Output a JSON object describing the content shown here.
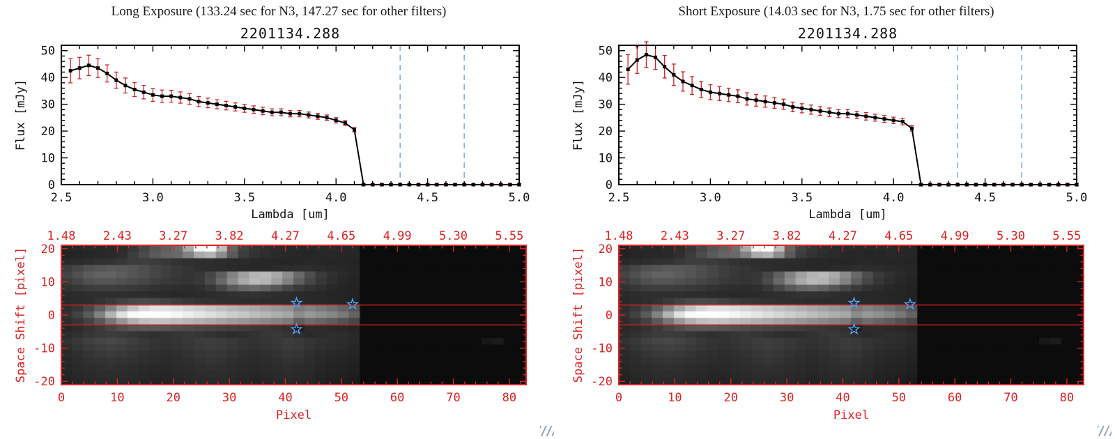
{
  "labels": {
    "flux_axis": "Flux [mJy]",
    "lambda_axis": "Lambda [um]",
    "space_axis": "Space Shift [pixel]",
    "pixel_axis": "Pixel"
  },
  "panels": [
    {
      "header": "Long Exposure (133.24 sec for N3, 147.27 sec for other filters)",
      "spectrum_title": "2201134.288"
    },
    {
      "header": "Short Exposure (14.03 sec for N3, 1.75 sec for other filters)",
      "spectrum_title": "2201134.288"
    }
  ],
  "colors": {
    "background": "#ffffff",
    "axis_black": "#000000",
    "axis_red": "#dd2222",
    "error_red": "#cc2222",
    "dashed_blue": "#7fb2e5",
    "star_blue": "#55a0f0"
  },
  "chart_data": [
    {
      "type": "line",
      "name": "long_exposure_spectrum",
      "title": "2201134.288",
      "xlabel": "Lambda [um]",
      "ylabel": "Flux [mJy]",
      "xlim": [
        2.5,
        5.0
      ],
      "ylim": [
        0,
        52
      ],
      "xticks": [
        2.5,
        3.0,
        3.5,
        4.0,
        4.5,
        5.0
      ],
      "yticks": [
        0,
        10,
        20,
        30,
        40,
        50
      ],
      "dashed_lines_x": [
        4.35,
        4.7
      ],
      "x": [
        2.55,
        2.6,
        2.65,
        2.7,
        2.75,
        2.8,
        2.85,
        2.9,
        2.95,
        3.0,
        3.05,
        3.1,
        3.15,
        3.2,
        3.25,
        3.3,
        3.35,
        3.4,
        3.45,
        3.5,
        3.55,
        3.6,
        3.65,
        3.7,
        3.75,
        3.8,
        3.85,
        3.9,
        3.95,
        4.0,
        4.05,
        4.1,
        4.15,
        4.2,
        4.25,
        4.3,
        4.35,
        4.4,
        4.45,
        4.5,
        4.55,
        4.6,
        4.65,
        4.7,
        4.75,
        4.8,
        4.85,
        4.9,
        4.95,
        5.0
      ],
      "y": [
        42.5,
        43.5,
        44.5,
        43.5,
        41.5,
        39.0,
        37.0,
        35.5,
        34.5,
        33.5,
        33.0,
        33.0,
        32.5,
        32.0,
        31.0,
        30.5,
        30.0,
        29.5,
        29.0,
        28.5,
        28.0,
        27.5,
        27.0,
        27.0,
        26.5,
        26.5,
        26.0,
        25.5,
        25.0,
        24.0,
        23.0,
        20.5,
        0,
        0,
        0,
        0,
        0,
        0,
        0,
        0,
        0,
        0,
        0,
        0,
        0,
        0,
        0,
        0,
        0,
        0
      ],
      "yerr": [
        4.5,
        4.0,
        3.8,
        3.5,
        3.2,
        3.0,
        2.8,
        2.6,
        2.5,
        2.4,
        2.3,
        2.2,
        2.1,
        2.0,
        1.9,
        1.8,
        1.7,
        1.6,
        1.5,
        1.5,
        1.4,
        1.4,
        1.3,
        1.3,
        1.2,
        1.2,
        1.1,
        1.1,
        1.0,
        1.0,
        0.9,
        0.8,
        0.4,
        0.4,
        0.4,
        0.4,
        0.4,
        0.4,
        0.4,
        0.4,
        0.4,
        0.4,
        0.4,
        0.4,
        0.4,
        0.4,
        0.4,
        0.4,
        0.4,
        0.4
      ]
    },
    {
      "type": "line",
      "name": "short_exposure_spectrum",
      "title": "2201134.288",
      "xlabel": "Lambda [um]",
      "ylabel": "Flux [mJy]",
      "xlim": [
        2.5,
        5.0
      ],
      "ylim": [
        0,
        52
      ],
      "xticks": [
        2.5,
        3.0,
        3.5,
        4.0,
        4.5,
        5.0
      ],
      "yticks": [
        0,
        10,
        20,
        30,
        40,
        50
      ],
      "dashed_lines_x": [
        4.35,
        4.7
      ],
      "x": [
        2.55,
        2.6,
        2.65,
        2.7,
        2.75,
        2.8,
        2.85,
        2.9,
        2.95,
        3.0,
        3.05,
        3.1,
        3.15,
        3.2,
        3.25,
        3.3,
        3.35,
        3.4,
        3.45,
        3.5,
        3.55,
        3.6,
        3.65,
        3.7,
        3.75,
        3.8,
        3.85,
        3.9,
        3.95,
        4.0,
        4.05,
        4.1,
        4.15,
        4.2,
        4.25,
        4.3,
        4.35,
        4.4,
        4.45,
        4.5,
        4.55,
        4.6,
        4.65,
        4.7,
        4.75,
        4.8,
        4.85,
        4.9,
        4.95,
        5.0
      ],
      "y": [
        43.0,
        46.5,
        48.5,
        47.5,
        44.0,
        41.0,
        38.5,
        37.0,
        35.5,
        34.5,
        34.0,
        33.5,
        33.0,
        32.0,
        31.5,
        31.0,
        30.5,
        30.0,
        29.0,
        28.5,
        28.0,
        27.5,
        27.0,
        26.5,
        26.5,
        26.0,
        25.5,
        25.0,
        24.5,
        24.0,
        23.5,
        21.0,
        0,
        0,
        0,
        0,
        0,
        0,
        0,
        0,
        0,
        0,
        0,
        0,
        0,
        0,
        0,
        0,
        0,
        0
      ],
      "yerr": [
        5.5,
        5.0,
        4.8,
        4.5,
        4.2,
        4.0,
        3.6,
        3.3,
        3.0,
        2.8,
        2.6,
        2.5,
        2.4,
        2.3,
        2.2,
        2.1,
        2.0,
        1.9,
        1.8,
        1.7,
        1.7,
        1.6,
        1.6,
        1.5,
        1.5,
        1.4,
        1.4,
        1.3,
        1.3,
        1.2,
        1.2,
        1.0,
        0.5,
        0.5,
        0.5,
        0.5,
        0.5,
        0.5,
        0.5,
        0.5,
        0.5,
        0.5,
        0.5,
        0.5,
        0.5,
        0.5,
        0.5,
        0.5,
        0.5,
        0.5
      ]
    },
    {
      "type": "heatmap",
      "name": "spectral_image_2d",
      "xlabel": "Pixel",
      "ylabel": "Space Shift [pixel]",
      "xlim": [
        0,
        83
      ],
      "ylim": [
        -21,
        21
      ],
      "xticks": [
        0,
        10,
        20,
        30,
        40,
        50,
        60,
        70,
        80
      ],
      "yticks": [
        -20,
        -10,
        0,
        10,
        20
      ],
      "top_axis_labels": [
        "1.48",
        "2.43",
        "3.27",
        "3.82",
        "4.27",
        "4.65",
        "4.99",
        "5.30",
        "5.55"
      ],
      "aperture_lines_y": [
        3,
        -3
      ],
      "stars": [
        [
          42,
          3.6
        ],
        [
          52,
          3.2
        ],
        [
          42,
          -4.3
        ]
      ],
      "x_step_per_cell": 2,
      "y_step_per_cell": 2,
      "values": [
        [
          36,
          38,
          40,
          39,
          41,
          44,
          55,
          70,
          85,
          95,
          110,
          170,
          245,
          255,
          190,
          100,
          65,
          52,
          46,
          43,
          41,
          40,
          39,
          40,
          41,
          39,
          38,
          12,
          12,
          12,
          12,
          12,
          12,
          12,
          12,
          12,
          12,
          12,
          12,
          12,
          12,
          12
        ],
        [
          35,
          37,
          39,
          40,
          42,
          46,
          60,
          75,
          90,
          100,
          105,
          130,
          170,
          180,
          140,
          90,
          60,
          50,
          45,
          42,
          40,
          39,
          38,
          39,
          40,
          39,
          38,
          12,
          12,
          12,
          12,
          12,
          12,
          12,
          12,
          12,
          12,
          12,
          12,
          12,
          12,
          12
        ],
        [
          40,
          42,
          45,
          48,
          50,
          55,
          60,
          62,
          60,
          55,
          50,
          48,
          46,
          45,
          44,
          43,
          42,
          40,
          39,
          38,
          38,
          39,
          40,
          39,
          38,
          37,
          36,
          12,
          12,
          12,
          12,
          12,
          12,
          12,
          12,
          12,
          12,
          12,
          12,
          12,
          12,
          12
        ],
        [
          60,
          70,
          80,
          85,
          90,
          88,
          84,
          78,
          70,
          62,
          56,
          52,
          48,
          46,
          44,
          42,
          41,
          40,
          40,
          42,
          44,
          46,
          45,
          43,
          41,
          39,
          38,
          12,
          12,
          12,
          12,
          12,
          12,
          12,
          12,
          12,
          12,
          12,
          12,
          12,
          12,
          12
        ],
        [
          68,
          80,
          92,
          98,
          98,
          92,
          85,
          78,
          70,
          62,
          56,
          52,
          55,
          70,
          95,
          130,
          160,
          180,
          185,
          170,
          140,
          105,
          78,
          58,
          48,
          42,
          38,
          12,
          12,
          12,
          12,
          12,
          12,
          12,
          12,
          12,
          12,
          12,
          12,
          12,
          12,
          12
        ],
        [
          60,
          70,
          80,
          85,
          85,
          80,
          75,
          70,
          64,
          58,
          54,
          52,
          56,
          75,
          105,
          140,
          170,
          185,
          180,
          160,
          130,
          95,
          70,
          55,
          46,
          40,
          36,
          12,
          12,
          12,
          12,
          12,
          12,
          12,
          12,
          12,
          12,
          12,
          12,
          12,
          12,
          12
        ],
        [
          50,
          55,
          60,
          62,
          62,
          60,
          57,
          54,
          50,
          47,
          45,
          44,
          46,
          55,
          70,
          88,
          100,
          105,
          98,
          85,
          70,
          58,
          50,
          45,
          40,
          37,
          35,
          12,
          12,
          12,
          12,
          12,
          12,
          12,
          12,
          12,
          12,
          12,
          12,
          12,
          12,
          12
        ],
        [
          42,
          44,
          46,
          47,
          47,
          46,
          45,
          44,
          43,
          42,
          41,
          41,
          42,
          44,
          46,
          48,
          50,
          50,
          48,
          46,
          44,
          42,
          40,
          39,
          38,
          36,
          34,
          12,
          12,
          12,
          12,
          12,
          12,
          12,
          12,
          12,
          12,
          12,
          12,
          12,
          12,
          12
        ],
        [
          40,
          42,
          45,
          50,
          58,
          66,
          72,
          74,
          72,
          66,
          60,
          55,
          52,
          50,
          48,
          47,
          46,
          45,
          44,
          44,
          43,
          42,
          41,
          40,
          39,
          37,
          35,
          12,
          12,
          12,
          12,
          12,
          12,
          12,
          12,
          12,
          12,
          12,
          12,
          12,
          12,
          12
        ],
        [
          45,
          55,
          70,
          95,
          130,
          165,
          195,
          215,
          225,
          225,
          220,
          212,
          205,
          198,
          190,
          182,
          175,
          168,
          160,
          152,
          145,
          120,
          130,
          122,
          112,
          100,
          85,
          12,
          12,
          12,
          12,
          12,
          12,
          12,
          12,
          12,
          12,
          12,
          12,
          12,
          12,
          12
        ],
        [
          50,
          65,
          90,
          130,
          180,
          225,
          250,
          255,
          255,
          252,
          246,
          238,
          230,
          222,
          214,
          206,
          198,
          190,
          182,
          174,
          166,
          140,
          152,
          144,
          134,
          120,
          100,
          12,
          12,
          12,
          12,
          12,
          12,
          12,
          12,
          12,
          12,
          12,
          12,
          12,
          12,
          12
        ],
        [
          44,
          52,
          66,
          88,
          118,
          150,
          175,
          190,
          195,
          193,
          188,
          182,
          176,
          170,
          163,
          156,
          150,
          143,
          136,
          130,
          122,
          95,
          108,
          100,
          92,
          82,
          70,
          12,
          12,
          12,
          12,
          12,
          12,
          12,
          12,
          12,
          12,
          12,
          12,
          12,
          12,
          12
        ],
        [
          40,
          44,
          50,
          58,
          68,
          78,
          85,
          88,
          87,
          84,
          80,
          76,
          72,
          69,
          66,
          63,
          60,
          57,
          55,
          52,
          48,
          30,
          45,
          44,
          42,
          40,
          36,
          12,
          12,
          12,
          12,
          12,
          12,
          12,
          12,
          12,
          12,
          12,
          12,
          12,
          12,
          12
        ],
        [
          44,
          48,
          54,
          58,
          60,
          58,
          54,
          50,
          48,
          50,
          54,
          56,
          54,
          50,
          46,
          44,
          46,
          50,
          54,
          56,
          52,
          46,
          42,
          44,
          46,
          44,
          40,
          12,
          12,
          12,
          12,
          12,
          12,
          12,
          12,
          12,
          12,
          12,
          12,
          12,
          12,
          12
        ],
        [
          50,
          56,
          64,
          70,
          72,
          68,
          62,
          56,
          52,
          50,
          52,
          56,
          60,
          62,
          60,
          56,
          52,
          50,
          52,
          56,
          60,
          58,
          52,
          48,
          46,
          44,
          40,
          12,
          12,
          12,
          12,
          12,
          12,
          12,
          12,
          12,
          12,
          12,
          24,
          28,
          12,
          12
        ],
        [
          46,
          52,
          58,
          62,
          64,
          62,
          58,
          54,
          50,
          48,
          50,
          54,
          58,
          60,
          58,
          54,
          50,
          48,
          50,
          54,
          58,
          56,
          50,
          46,
          44,
          42,
          38,
          12,
          12,
          12,
          12,
          12,
          12,
          12,
          12,
          12,
          12,
          12,
          12,
          12,
          12,
          12
        ],
        [
          42,
          46,
          52,
          56,
          58,
          56,
          52,
          48,
          46,
          44,
          46,
          50,
          54,
          56,
          54,
          50,
          46,
          44,
          46,
          50,
          54,
          52,
          46,
          42,
          40,
          38,
          36,
          12,
          12,
          12,
          12,
          12,
          12,
          12,
          12,
          12,
          12,
          12,
          12,
          12,
          12,
          12
        ],
        [
          40,
          44,
          48,
          50,
          52,
          50,
          48,
          46,
          44,
          42,
          44,
          46,
          50,
          52,
          50,
          46,
          44,
          42,
          44,
          46,
          50,
          48,
          44,
          40,
          38,
          36,
          34,
          12,
          12,
          12,
          12,
          12,
          12,
          12,
          12,
          12,
          12,
          12,
          12,
          12,
          12,
          12
        ],
        [
          38,
          42,
          44,
          46,
          48,
          46,
          44,
          42,
          40,
          40,
          42,
          44,
          46,
          48,
          46,
          44,
          42,
          40,
          42,
          44,
          46,
          44,
          42,
          38,
          36,
          34,
          32,
          12,
          12,
          12,
          12,
          12,
          12,
          12,
          12,
          12,
          12,
          12,
          12,
          12,
          12,
          12
        ],
        [
          36,
          40,
          42,
          44,
          44,
          44,
          42,
          40,
          38,
          38,
          40,
          42,
          44,
          44,
          44,
          42,
          40,
          38,
          40,
          42,
          44,
          42,
          40,
          36,
          34,
          32,
          30,
          12,
          12,
          12,
          12,
          12,
          12,
          12,
          12,
          12,
          12,
          12,
          12,
          12,
          12,
          12
        ],
        [
          34,
          38,
          40,
          42,
          42,
          42,
          40,
          38,
          36,
          36,
          38,
          40,
          42,
          42,
          42,
          40,
          38,
          36,
          38,
          40,
          42,
          40,
          38,
          34,
          32,
          30,
          28,
          12,
          12,
          12,
          12,
          12,
          12,
          12,
          12,
          12,
          12,
          12,
          12,
          12,
          12,
          12
        ]
      ]
    }
  ]
}
